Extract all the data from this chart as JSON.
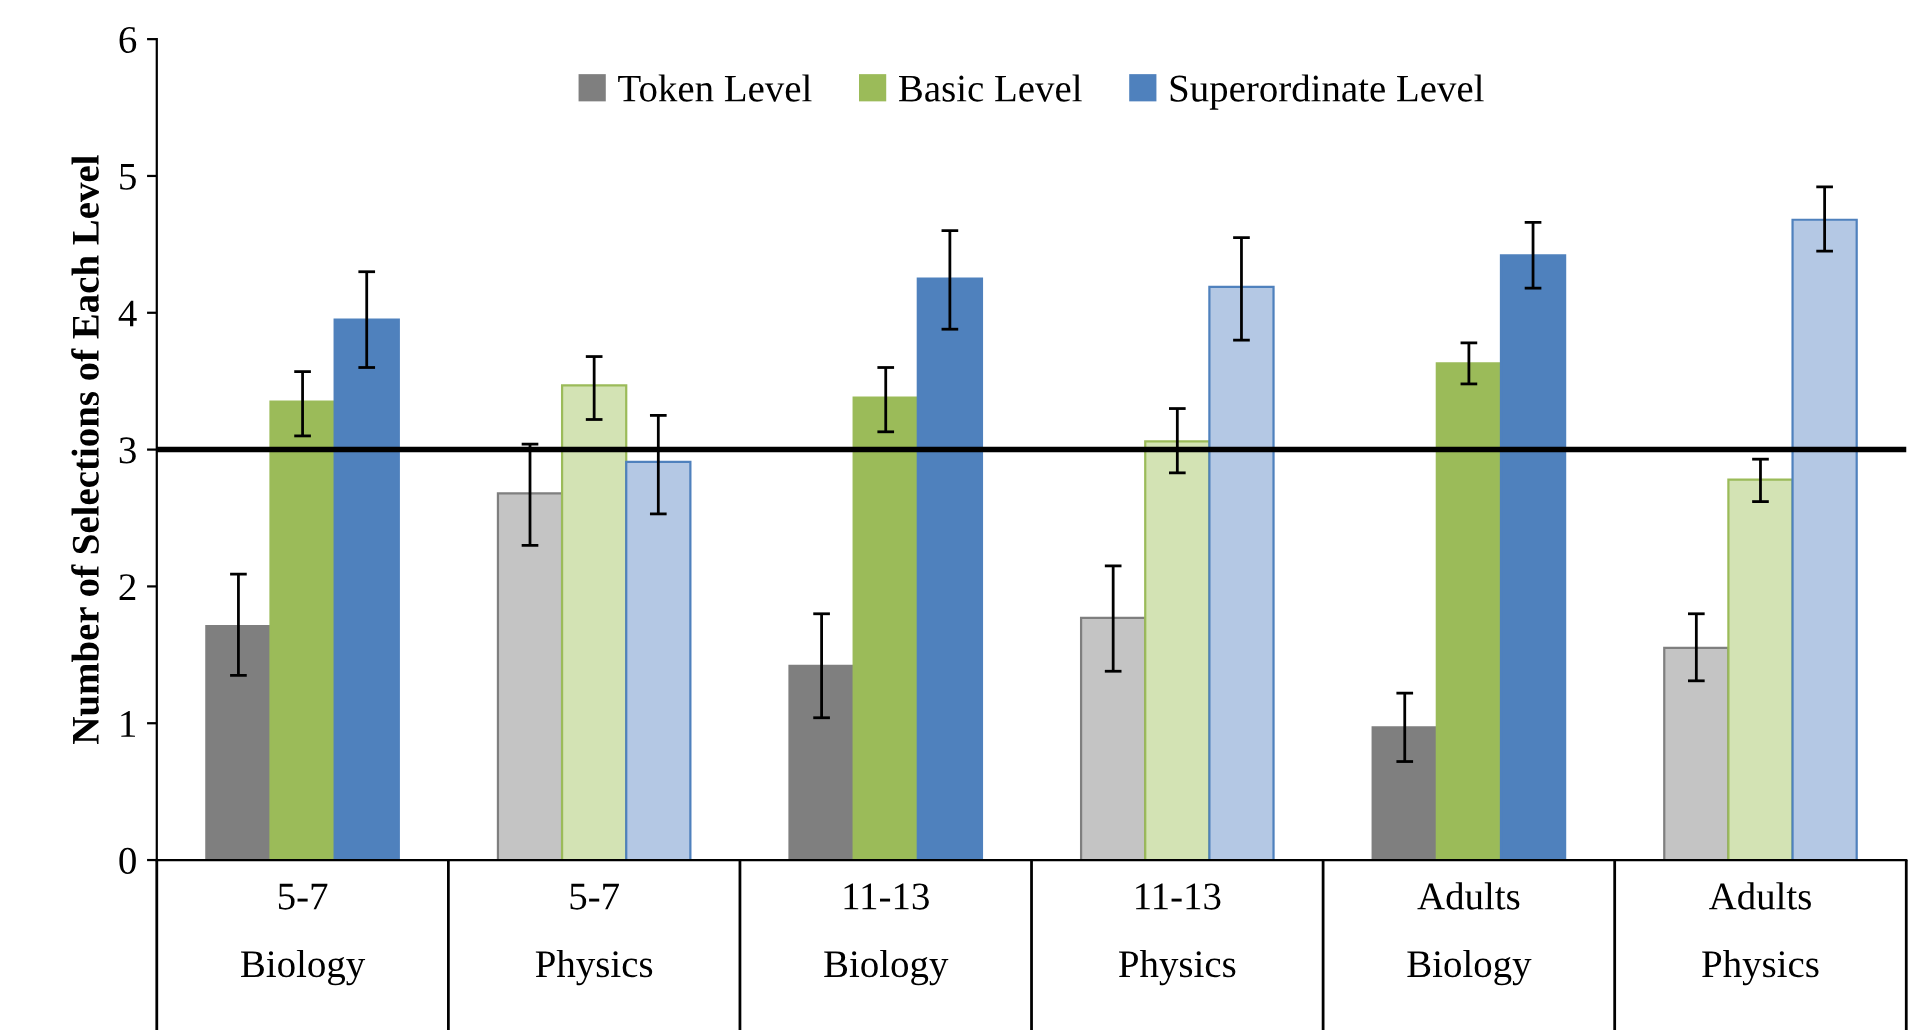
{
  "chart_data": {
    "type": "bar",
    "ylabel": "Number of Selections of Each Level",
    "categories": [
      "5-7\nBiology",
      "5-7\nPhysics",
      "11-13\nBiology",
      "11-13\nPhysics",
      "Adults\nBiology",
      "Adults\nPhysics"
    ],
    "series": [
      {
        "name": "Token Level",
        "color": "#7f7f7f",
        "colors": [
          "#7f7f7f",
          "#c4c4c4",
          "#7f7f7f",
          "#c4c4c4",
          "#7f7f7f",
          "#c4c4c4"
        ],
        "values": [
          1.71,
          2.68,
          1.42,
          1.77,
          0.97,
          1.55
        ],
        "errors": [
          [
            1.35,
            2.09
          ],
          [
            2.3,
            3.04
          ],
          [
            1.04,
            1.8
          ],
          [
            1.38,
            2.15
          ],
          [
            0.72,
            1.22
          ],
          [
            1.31,
            1.8
          ]
        ]
      },
      {
        "name": "Basic Level",
        "color": "#9bbb59",
        "colors": [
          "#9bbb59",
          "#d3e3b4",
          "#9bbb59",
          "#d3e3b4",
          "#9bbb59",
          "#d3e3b4"
        ],
        "values": [
          3.35,
          3.47,
          3.38,
          3.06,
          3.63,
          2.78
        ],
        "errors": [
          [
            3.1,
            3.57
          ],
          [
            3.22,
            3.68
          ],
          [
            3.13,
            3.6
          ],
          [
            2.83,
            3.3
          ],
          [
            3.48,
            3.78
          ],
          [
            2.62,
            2.93
          ]
        ]
      },
      {
        "name": "Superordinate Level",
        "color": "#4f81bd",
        "colors": [
          "#4f81bd",
          "#b4c8e4",
          "#4f81bd",
          "#b4c8e4",
          "#4f81bd",
          "#b4c8e4"
        ],
        "values": [
          3.95,
          2.91,
          4.25,
          4.19,
          4.42,
          4.68
        ],
        "errors": [
          [
            3.6,
            4.3
          ],
          [
            2.53,
            3.25
          ],
          [
            3.88,
            4.6
          ],
          [
            3.8,
            4.55
          ],
          [
            4.18,
            4.66
          ],
          [
            4.45,
            4.92
          ]
        ]
      }
    ],
    "ylim": [
      0,
      6
    ],
    "yticks": [
      0,
      1,
      2,
      3,
      4,
      5,
      6
    ],
    "ref_lines": [
      {
        "axis": "y",
        "value": 3,
        "color": "#000000",
        "line_style": "solid"
      }
    ],
    "grid": false,
    "legend": "top"
  }
}
